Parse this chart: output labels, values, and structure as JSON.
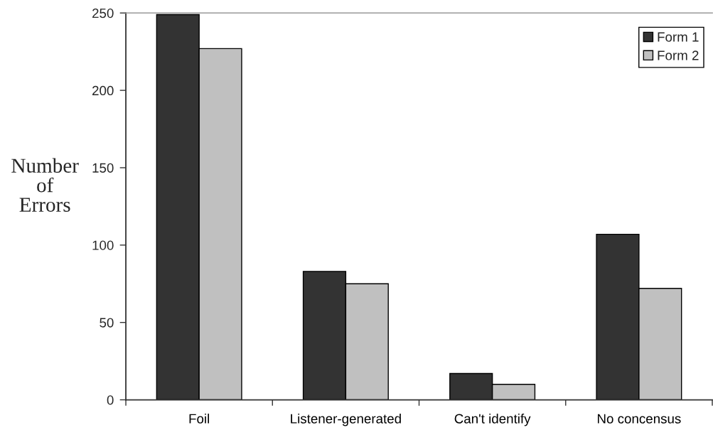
{
  "chart_data": {
    "type": "bar",
    "ylabel": "Number of Errors",
    "categories": [
      "Foil",
      "Listener-generated",
      "Can't identify",
      "No concensus"
    ],
    "series": [
      {
        "name": "Form 1",
        "color": "#333333",
        "values": [
          249,
          83,
          17,
          107
        ]
      },
      {
        "name": "Form 2",
        "color": "#c0c0c0",
        "values": [
          227,
          75,
          10,
          72
        ]
      }
    ],
    "ylim": [
      0,
      250
    ],
    "yticks": [
      0,
      50,
      100,
      150,
      200,
      250
    ],
    "legend": "top right"
  }
}
